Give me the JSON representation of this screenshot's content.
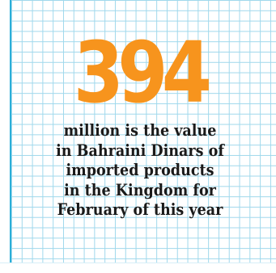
{
  "stat": {
    "value": "394",
    "caption_lines": [
      "million is the value",
      "in Bahraini Dinars of",
      "imported products",
      "in the Kingdom for",
      "February of this year"
    ]
  },
  "colors": {
    "accent": "#f7941d",
    "grid_line": "#9fd8ec",
    "grid_edge": "#2aaed8",
    "text": "#1a1a1a",
    "background": "#ffffff"
  }
}
